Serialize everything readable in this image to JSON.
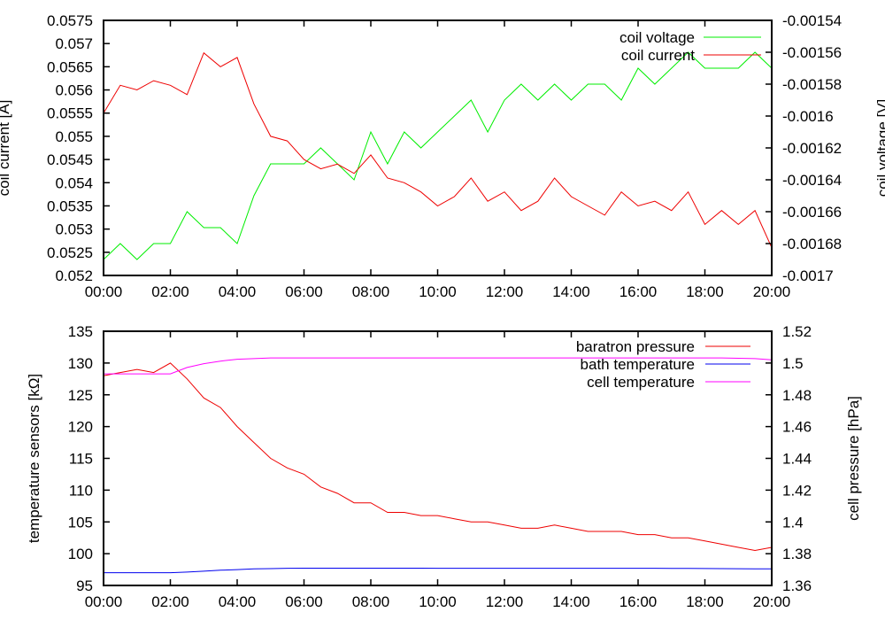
{
  "chart_data": [
    {
      "type": "line",
      "title": "",
      "xlabel": "",
      "ylabel": "coil current [A]",
      "y2label": "coil voltage [V]",
      "x": [
        0,
        0.5,
        1,
        1.5,
        2,
        2.5,
        3,
        3.5,
        4,
        4.5,
        5,
        5.5,
        6,
        6.5,
        7,
        7.5,
        8,
        8.5,
        9,
        9.5,
        10,
        10.5,
        11,
        11.5,
        12,
        12.5,
        13,
        13.5,
        14,
        14.5,
        15,
        15.5,
        16,
        16.5,
        17,
        17.5,
        18,
        18.5,
        19,
        19.5,
        20
      ],
      "xlim": [
        0,
        20
      ],
      "xticks": [
        0,
        2,
        4,
        6,
        8,
        10,
        12,
        14,
        16,
        18,
        20
      ],
      "xtick_labels": [
        "00:00",
        "02:00",
        "04:00",
        "06:00",
        "08:00",
        "10:00",
        "12:00",
        "14:00",
        "16:00",
        "18:00",
        "20:00"
      ],
      "ylim": [
        0.052,
        0.0575
      ],
      "yticks": [
        0.052,
        0.0525,
        0.053,
        0.0535,
        0.054,
        0.0545,
        0.055,
        0.0555,
        0.056,
        0.0565,
        0.057,
        0.0575
      ],
      "ytick_labels": [
        "0.052",
        "0.0525",
        "0.053",
        "0.0535",
        "0.054",
        "0.0545",
        "0.055",
        "0.0555",
        "0.056",
        "0.0565",
        "0.057",
        "0.0575"
      ],
      "y2lim": [
        -0.0017,
        -0.00154
      ],
      "y2ticks": [
        -0.0017,
        -0.00168,
        -0.00166,
        -0.00164,
        -0.00162,
        -0.0016,
        -0.00158,
        -0.00156,
        -0.00154
      ],
      "y2tick_labels": [
        "-0.0017",
        "-0.00168",
        "-0.00166",
        "-0.00164",
        "-0.00162",
        "-0.0016",
        "-0.00158",
        "-0.00156",
        "-0.00154"
      ],
      "legend_position": "top-right",
      "series": [
        {
          "name": "coil voltage",
          "axis": "y2",
          "color": "#00ee00",
          "values": [
            -0.00169,
            -0.00168,
            -0.00169,
            -0.00168,
            -0.00168,
            -0.00166,
            -0.00167,
            -0.00167,
            -0.00168,
            -0.00165,
            -0.00163,
            -0.00163,
            -0.00163,
            -0.00162,
            -0.00163,
            -0.00164,
            -0.00161,
            -0.00163,
            -0.00161,
            -0.00162,
            -0.00161,
            -0.0016,
            -0.00159,
            -0.00161,
            -0.00159,
            -0.00158,
            -0.00159,
            -0.00158,
            -0.00159,
            -0.00158,
            -0.00158,
            -0.00159,
            -0.00157,
            -0.00158,
            -0.00157,
            -0.00156,
            -0.00157,
            -0.00157,
            -0.00157,
            -0.00156,
            -0.00157
          ]
        },
        {
          "name": "coil current",
          "axis": "y",
          "color": "#ee0000",
          "values": [
            0.0555,
            0.0561,
            0.056,
            0.0562,
            0.0561,
            0.0559,
            0.0568,
            0.0565,
            0.0567,
            0.0557,
            0.055,
            0.0549,
            0.0545,
            0.0543,
            0.0544,
            0.0542,
            0.0546,
            0.0541,
            0.054,
            0.0538,
            0.0535,
            0.0537,
            0.0541,
            0.0536,
            0.0538,
            0.0534,
            0.0536,
            0.0541,
            0.0537,
            0.0535,
            0.0533,
            0.0538,
            0.0535,
            0.0536,
            0.0534,
            0.0538,
            0.0531,
            0.0534,
            0.0531,
            0.0534,
            0.0526
          ]
        }
      ]
    },
    {
      "type": "line",
      "title": "",
      "xlabel": "",
      "ylabel": "temperature sensors [kΩ]",
      "y2label": "cell pressure [hPa]",
      "x": [
        0,
        0.5,
        1,
        1.5,
        2,
        2.5,
        3,
        3.5,
        4,
        4.5,
        5,
        5.5,
        6,
        6.5,
        7,
        7.5,
        8,
        8.5,
        9,
        9.5,
        10,
        10.5,
        11,
        11.5,
        12,
        12.5,
        13,
        13.5,
        14,
        14.5,
        15,
        15.5,
        16,
        16.5,
        17,
        17.5,
        18,
        18.5,
        19,
        19.5,
        20
      ],
      "xlim": [
        0,
        20
      ],
      "xticks": [
        0,
        2,
        4,
        6,
        8,
        10,
        12,
        14,
        16,
        18,
        20
      ],
      "xtick_labels": [
        "00:00",
        "02:00",
        "04:00",
        "06:00",
        "08:00",
        "10:00",
        "12:00",
        "14:00",
        "16:00",
        "18:00",
        "20:00"
      ],
      "ylim": [
        95,
        135
      ],
      "yticks": [
        95,
        100,
        105,
        110,
        115,
        120,
        125,
        130,
        135
      ],
      "ytick_labels": [
        "95",
        "100",
        "105",
        "110",
        "115",
        "120",
        "125",
        "130",
        "135"
      ],
      "y2lim": [
        1.36,
        1.52
      ],
      "y2ticks": [
        1.36,
        1.38,
        1.4,
        1.42,
        1.44,
        1.46,
        1.48,
        1.5,
        1.52
      ],
      "y2tick_labels": [
        "1.36",
        "1.38",
        "1.4",
        "1.42",
        "1.44",
        "1.46",
        "1.48",
        "1.5",
        "1.52"
      ],
      "legend_position": "top-right",
      "series": [
        {
          "name": "baratron pressure",
          "axis": "y2",
          "color": "#ee0000",
          "values": [
            1.492,
            1.494,
            1.496,
            1.494,
            1.5,
            1.49,
            1.478,
            1.472,
            1.46,
            1.45,
            1.44,
            1.434,
            1.43,
            1.422,
            1.418,
            1.412,
            1.412,
            1.406,
            1.406,
            1.404,
            1.404,
            1.402,
            1.4,
            1.4,
            1.398,
            1.396,
            1.396,
            1.398,
            1.396,
            1.394,
            1.394,
            1.394,
            1.392,
            1.392,
            1.39,
            1.39,
            1.388,
            1.386,
            1.384,
            1.382,
            1.384
          ]
        },
        {
          "name": "bath temperature",
          "axis": "y",
          "color": "#0000ee",
          "values": [
            97,
            97,
            97,
            97,
            97,
            97.1,
            97.25,
            97.4,
            97.5,
            97.6,
            97.65,
            97.7,
            97.72,
            97.72,
            97.72,
            97.72,
            97.72,
            97.72,
            97.72,
            97.72,
            97.7,
            97.7,
            97.7,
            97.7,
            97.7,
            97.7,
            97.7,
            97.7,
            97.7,
            97.7,
            97.7,
            97.7,
            97.7,
            97.7,
            97.68,
            97.68,
            97.66,
            97.65,
            97.64,
            97.62,
            97.6
          ]
        },
        {
          "name": "cell temperature",
          "axis": "y",
          "color": "#ff00ff",
          "values": [
            128.3,
            128.3,
            128.3,
            128.3,
            128.3,
            129.3,
            129.9,
            130.3,
            130.6,
            130.7,
            130.8,
            130.8,
            130.8,
            130.8,
            130.8,
            130.8,
            130.8,
            130.8,
            130.8,
            130.8,
            130.8,
            130.8,
            130.8,
            130.8,
            130.8,
            130.8,
            130.8,
            130.8,
            130.8,
            130.8,
            130.8,
            130.8,
            130.8,
            130.8,
            130.8,
            130.8,
            130.8,
            130.8,
            130.75,
            130.7,
            130.5
          ]
        }
      ]
    }
  ]
}
